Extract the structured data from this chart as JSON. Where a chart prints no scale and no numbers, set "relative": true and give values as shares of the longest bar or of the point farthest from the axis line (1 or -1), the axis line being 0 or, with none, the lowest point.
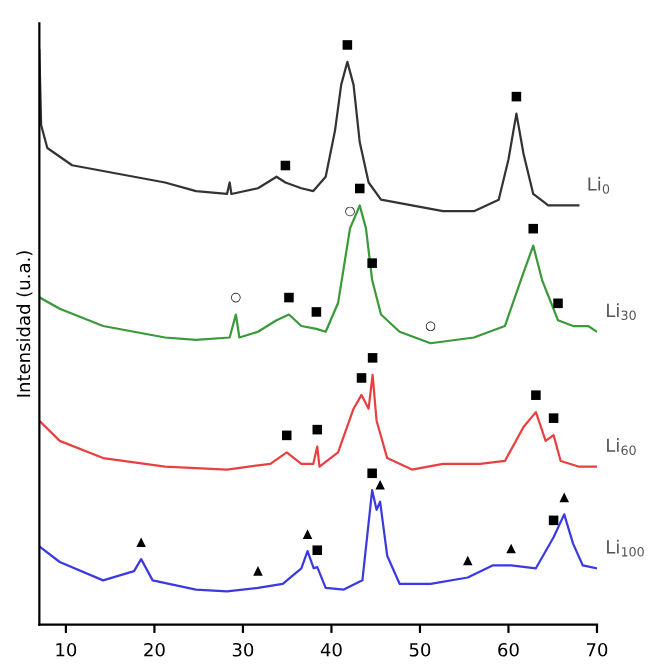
{
  "chart_data": {
    "type": "line",
    "relative": true,
    "xlabel": null,
    "ylabel": "Intensidad (u.a.)",
    "xlim": [
      7,
      70
    ],
    "xticks": [
      10,
      20,
      30,
      40,
      50,
      60,
      70
    ],
    "grid": false,
    "legend": false,
    "tick_labels": "x",
    "marker": "none",
    "line_style": "solid",
    "series": [
      {
        "name": "Li$_{0}$",
        "color": "#333333",
        "x": [
          7.0,
          7.2,
          7.9,
          10.7,
          14.2,
          17.7,
          21.2,
          24.7,
          28.2,
          28.5,
          28.7,
          31.7,
          33.8,
          34.8,
          36.6,
          37.95,
          39.35,
          40.4,
          41.1,
          41.8,
          42.5,
          43.2,
          44.2,
          45.6,
          49.1,
          52.6,
          56.1,
          58.9,
          60.0,
          60.9,
          61.7,
          62.8,
          64.5,
          67.9
        ],
        "values": [
          1.0,
          0.87,
          0.83,
          0.8,
          0.79,
          0.78,
          0.77,
          0.755,
          0.75,
          0.77,
          0.75,
          0.76,
          0.78,
          0.77,
          0.76,
          0.755,
          0.78,
          0.86,
          0.94,
          0.98,
          0.94,
          0.84,
          0.77,
          0.74,
          0.73,
          0.72,
          0.72,
          0.74,
          0.81,
          0.89,
          0.82,
          0.75,
          0.73,
          0.73
        ]
      },
      {
        "name": "Li$_{30}$",
        "color": "#3a9a3a",
        "x": [
          7.0,
          9.3,
          14.2,
          17.7,
          21.2,
          24.7,
          28.5,
          29.2,
          29.6,
          31.7,
          33.8,
          35.2,
          36.6,
          38.3,
          39.35,
          40.75,
          42.1,
          43.2,
          43.9,
          44.6,
          45.6,
          47.7,
          51.2,
          56.1,
          59.6,
          61.4,
          62.8,
          63.8,
          65.6,
          67.3,
          69.0,
          70.0
        ],
        "values": [
          0.57,
          0.55,
          0.52,
          0.51,
          0.5,
          0.496,
          0.5,
          0.54,
          0.5,
          0.51,
          0.53,
          0.54,
          0.52,
          0.515,
          0.51,
          0.56,
          0.69,
          0.73,
          0.69,
          0.6,
          0.54,
          0.51,
          0.49,
          0.5,
          0.52,
          0.6,
          0.66,
          0.6,
          0.53,
          0.52,
          0.52,
          0.51
        ]
      },
      {
        "name": "Li$_{60}$",
        "color": "#e84040",
        "x": [
          7.0,
          9.3,
          14.2,
          21.2,
          28.2,
          33.1,
          34.95,
          36.6,
          37.95,
          38.4,
          38.65,
          40.75,
          42.5,
          43.4,
          44.2,
          44.65,
          45.1,
          46.3,
          49.1,
          52.6,
          56.8,
          59.6,
          61.7,
          63.1,
          64.2,
          65.1,
          65.9,
          68.0,
          70.0
        ],
        "values": [
          0.355,
          0.32,
          0.29,
          0.275,
          0.27,
          0.28,
          0.3,
          0.28,
          0.28,
          0.31,
          0.275,
          0.3,
          0.376,
          0.4,
          0.376,
          0.435,
          0.355,
          0.29,
          0.27,
          0.28,
          0.28,
          0.285,
          0.344,
          0.37,
          0.32,
          0.33,
          0.285,
          0.275,
          0.275
        ]
      },
      {
        "name": "Li$_{100}$",
        "color": "#3a3adf",
        "x": [
          7.0,
          9.3,
          14.2,
          17.7,
          18.5,
          19.8,
          24.7,
          28.2,
          31.7,
          34.5,
          36.6,
          37.3,
          38.0,
          38.4,
          39.35,
          41.4,
          43.5,
          44.6,
          45.1,
          45.5,
          46.3,
          47.7,
          51.2,
          55.4,
          58.2,
          60.3,
          63.1,
          65.1,
          66.3,
          67.3,
          68.4,
          70.0
        ],
        "values": [
          0.136,
          0.109,
          0.077,
          0.093,
          0.114,
          0.077,
          0.061,
          0.058,
          0.064,
          0.071,
          0.098,
          0.128,
          0.098,
          0.1,
          0.064,
          0.061,
          0.077,
          0.234,
          0.2,
          0.214,
          0.12,
          0.071,
          0.071,
          0.082,
          0.103,
          0.103,
          0.098,
          0.152,
          0.192,
          0.141,
          0.103,
          0.098
        ]
      }
    ],
    "annotations": [
      {
        "text": "■",
        "x": 41.8,
        "y": 0.98
      },
      {
        "text": "■",
        "x": 34.8,
        "y": 0.77
      },
      {
        "text": "■",
        "x": 60.9,
        "y": 0.89
      },
      {
        "text": "■",
        "x": 43.2,
        "y": 0.73
      },
      {
        "text": "○",
        "x": 42.1,
        "y": 0.69
      },
      {
        "text": "■",
        "x": 44.6,
        "y": 0.6
      },
      {
        "text": "■",
        "x": 62.8,
        "y": 0.66
      },
      {
        "text": "■",
        "x": 65.6,
        "y": 0.53
      },
      {
        "text": "○",
        "x": 29.2,
        "y": 0.54
      },
      {
        "text": "■",
        "x": 35.2,
        "y": 0.54
      },
      {
        "text": "■",
        "x": 38.3,
        "y": 0.515
      },
      {
        "text": "○",
        "x": 51.2,
        "y": 0.49
      },
      {
        "text": "■",
        "x": 44.65,
        "y": 0.435
      },
      {
        "text": "■",
        "x": 43.4,
        "y": 0.4
      },
      {
        "text": "■",
        "x": 34.95,
        "y": 0.3
      },
      {
        "text": "■",
        "x": 38.4,
        "y": 0.31
      },
      {
        "text": "■",
        "x": 63.1,
        "y": 0.37
      },
      {
        "text": "■",
        "x": 65.1,
        "y": 0.33
      },
      {
        "text": "■",
        "x": 44.6,
        "y": 0.234
      },
      {
        "text": "▲",
        "x": 45.5,
        "y": 0.214
      },
      {
        "text": "▲",
        "x": 18.5,
        "y": 0.114
      },
      {
        "text": "▲",
        "x": 31.7,
        "y": 0.064
      },
      {
        "text": "▲",
        "x": 37.3,
        "y": 0.128
      },
      {
        "text": "■",
        "x": 38.4,
        "y": 0.1
      },
      {
        "text": "▲",
        "x": 55.4,
        "y": 0.082
      },
      {
        "text": "▲",
        "x": 60.3,
        "y": 0.103
      },
      {
        "text": "■",
        "x": 65.1,
        "y": 0.152
      },
      {
        "text": "▲",
        "x": 66.3,
        "y": 0.192
      }
    ]
  }
}
